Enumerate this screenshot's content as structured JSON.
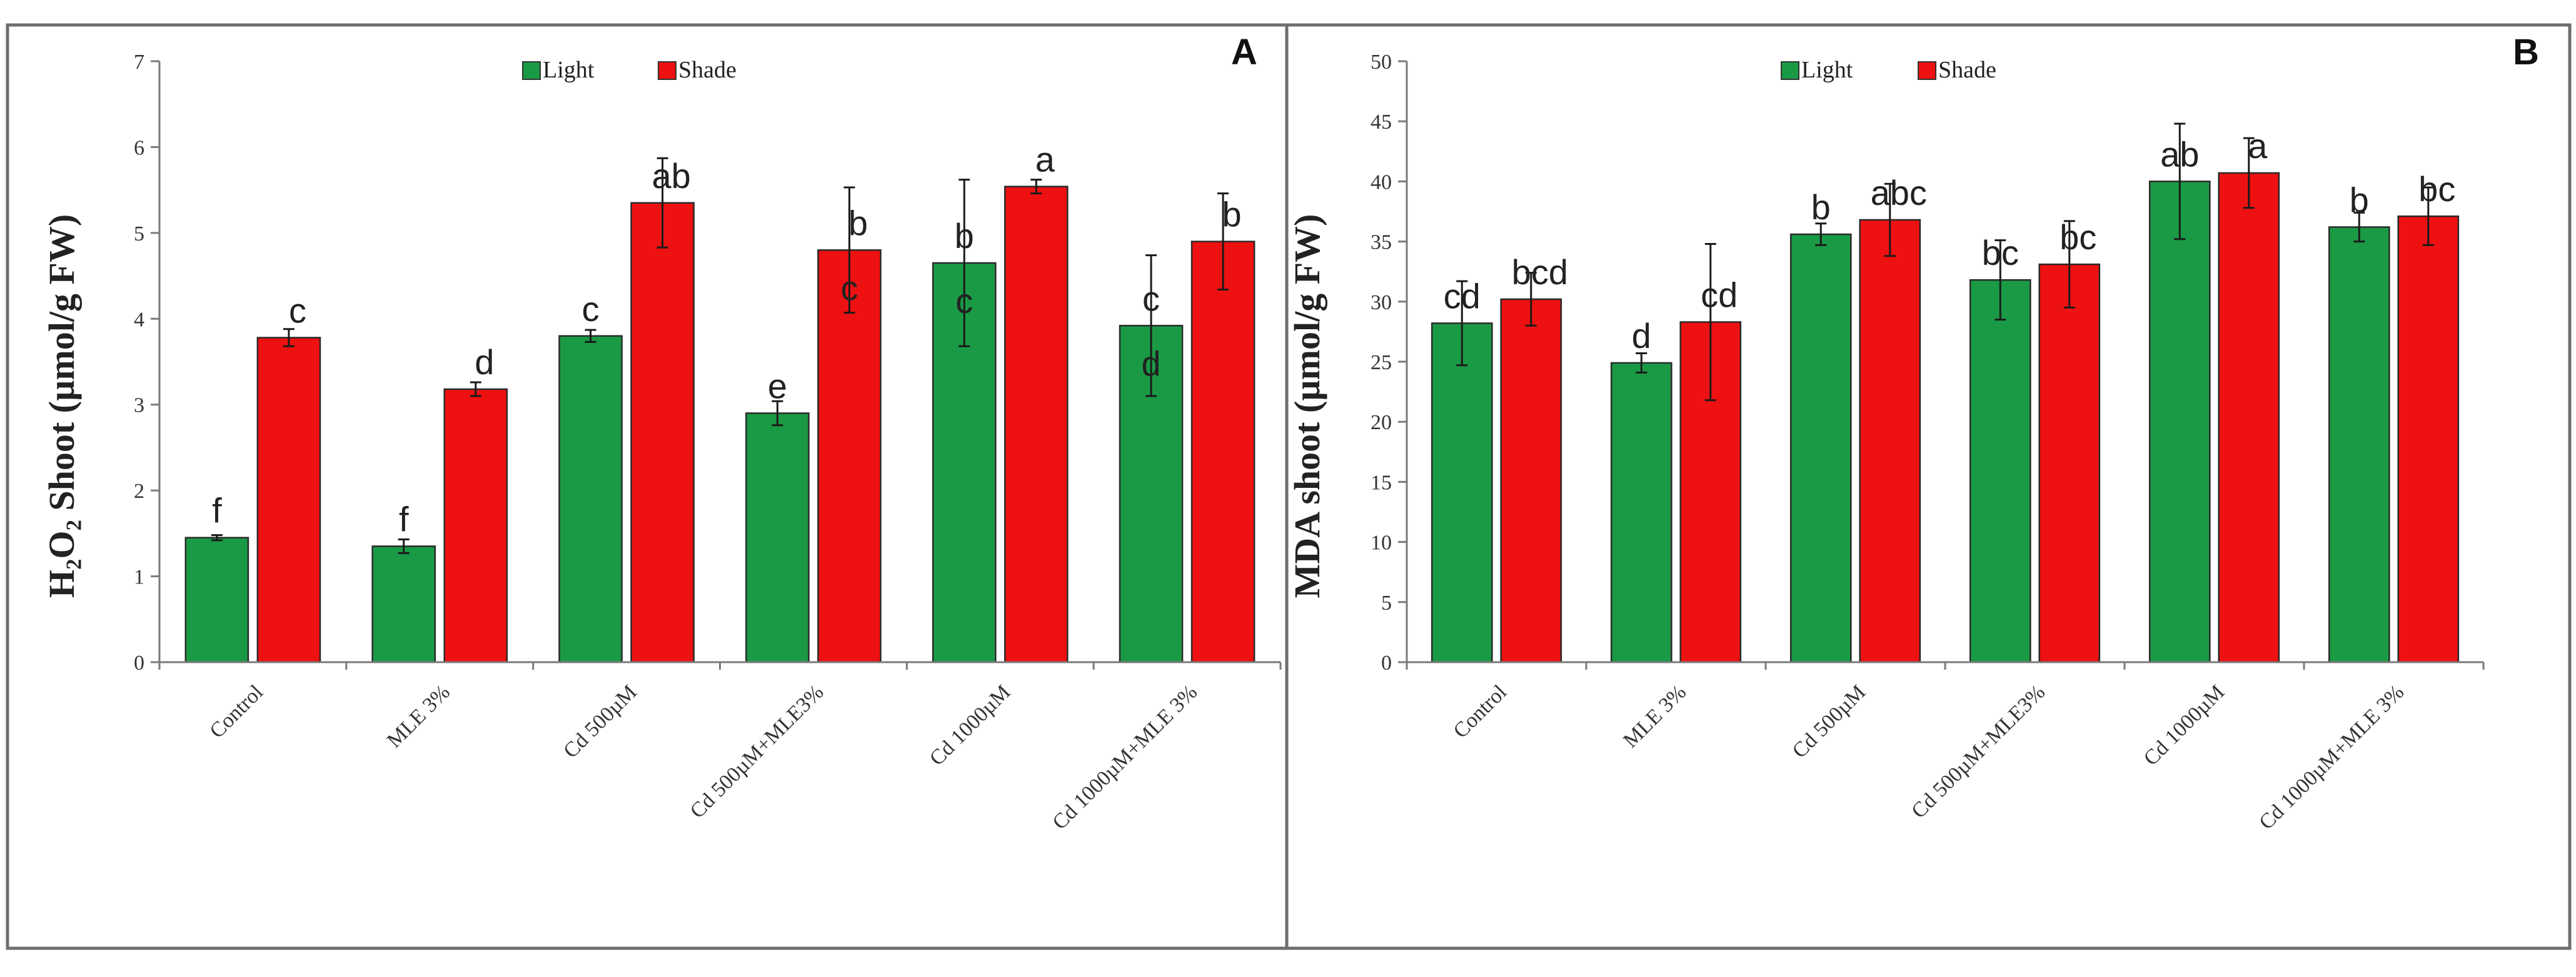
{
  "colors": {
    "light": "#1a9a45",
    "shade": "#ee1111",
    "frame": "#6e6e6e",
    "axis": "#7a7a7a"
  },
  "chart_data": [
    {
      "type": "bar",
      "panel": "A",
      "ylabel": "H₂O₂ Shoot (µmol/g FW)",
      "ylim": [
        0,
        7
      ],
      "yticks": [
        "0",
        "1",
        "2",
        "3",
        "4",
        "5",
        "6",
        "7"
      ],
      "categories": [
        "Control",
        "MLE 3%",
        "Cd 500µM",
        "Cd 500µM+MLE3%",
        "Cd 1000µM",
        "Cd 1000µM+MLE 3%"
      ],
      "legend": [
        "Light",
        "Shade"
      ],
      "series": [
        {
          "name": "Light",
          "values": [
            1.45,
            1.35,
            3.8,
            2.9,
            4.65,
            3.92
          ],
          "errors": [
            0.03,
            0.08,
            0.07,
            0.14,
            0.97,
            0.82
          ],
          "labels": [
            "f",
            "f",
            "c",
            "e",
            "b",
            "c"
          ],
          "inner_labels": [
            "",
            "",
            "",
            "",
            "c",
            "d"
          ]
        },
        {
          "name": "Shade",
          "values": [
            3.78,
            3.18,
            5.35,
            4.8,
            5.54,
            4.9
          ],
          "errors": [
            0.1,
            0.08,
            0.52,
            0.73,
            0.08,
            0.56
          ],
          "labels": [
            "c",
            "d",
            "ab",
            "b",
            "a",
            "b"
          ],
          "inner_labels": [
            "",
            "",
            "",
            "c",
            "",
            ""
          ]
        }
      ]
    },
    {
      "type": "bar",
      "panel": "B",
      "ylabel": "MDA shoot (µmol/g FW)",
      "ylim": [
        0,
        50
      ],
      "yticks": [
        "0",
        "5",
        "10",
        "15",
        "20",
        "25",
        "30",
        "35",
        "40",
        "45",
        "50"
      ],
      "categories": [
        "Control",
        "MLE 3%",
        "Cd 500µM",
        "Cd 500µM+MLE3%",
        "Cd 1000µM",
        "Cd 1000µM+MLE 3%"
      ],
      "legend": [
        "Light",
        "Shade"
      ],
      "series": [
        {
          "name": "Light",
          "values": [
            28.2,
            24.9,
            35.6,
            31.8,
            40.0,
            36.2
          ],
          "errors": [
            3.5,
            0.8,
            0.9,
            3.3,
            4.8,
            1.2
          ],
          "labels": [
            "cd",
            "d",
            "b",
            "bc",
            "ab",
            "b"
          ],
          "inner_labels": [
            "",
            "",
            "",
            "",
            "",
            ""
          ]
        },
        {
          "name": "Shade",
          "values": [
            30.2,
            28.3,
            36.8,
            33.1,
            40.7,
            37.1
          ],
          "errors": [
            2.2,
            6.5,
            3.0,
            3.6,
            2.9,
            2.4
          ],
          "labels": [
            "bcd",
            "cd",
            "abc",
            "bc",
            "a",
            "bc"
          ],
          "inner_labels": [
            "",
            "",
            "",
            "",
            "",
            ""
          ]
        }
      ]
    }
  ]
}
